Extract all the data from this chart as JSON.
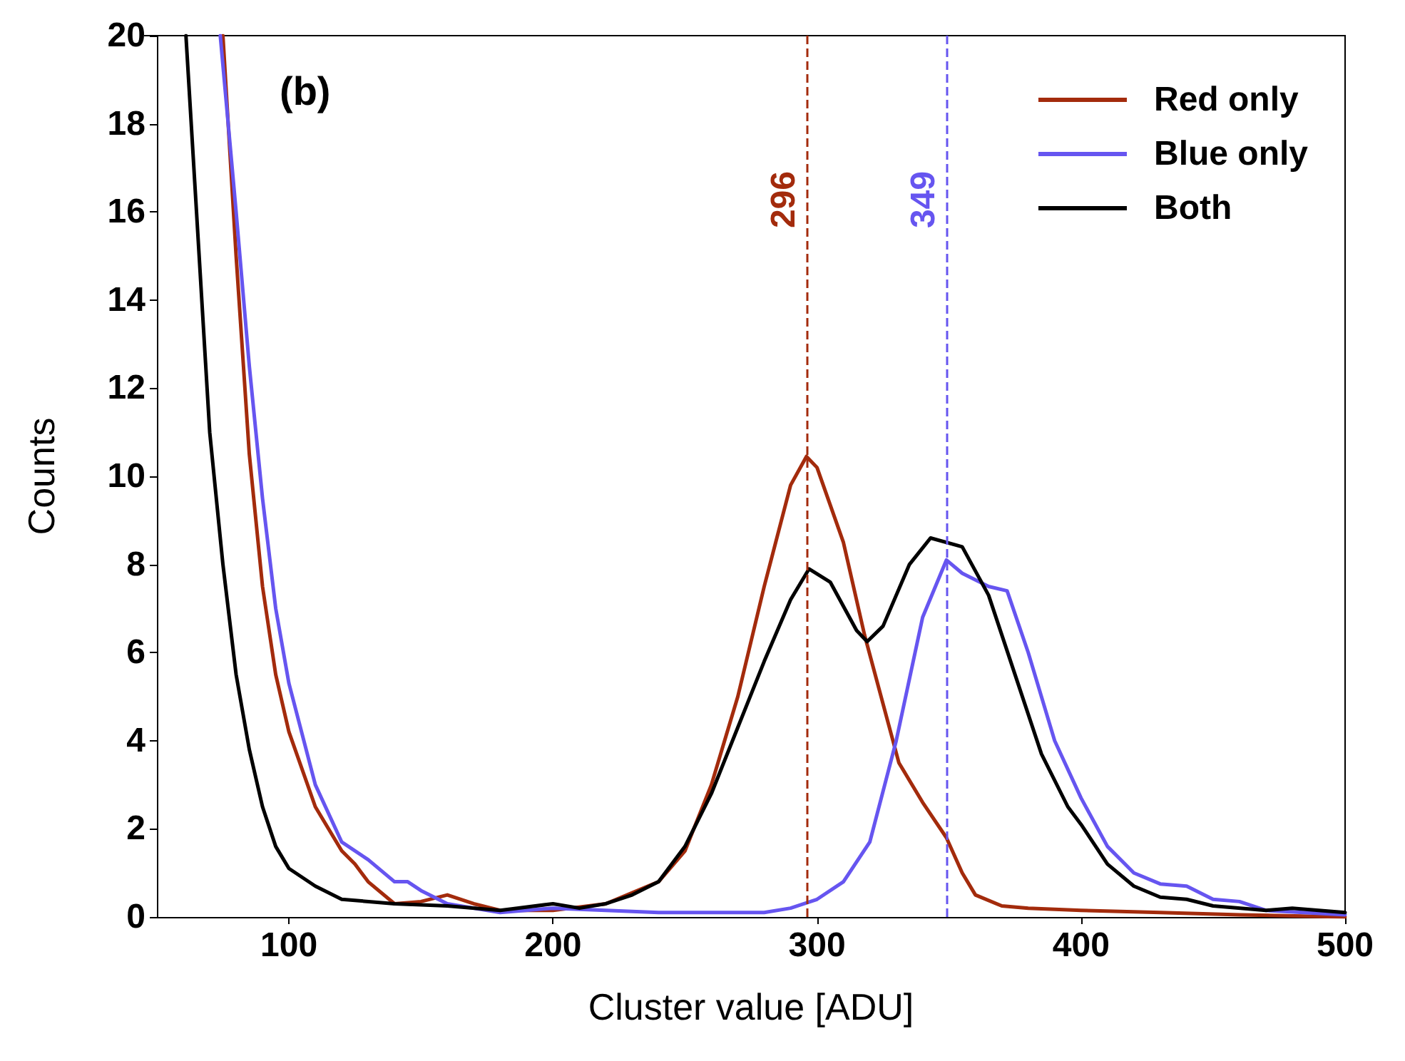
{
  "chart_data": {
    "type": "line",
    "xlabel": "Cluster value [ADU]",
    "ylabel": "Counts",
    "xlim": [
      50,
      500
    ],
    "xticks": [
      100,
      200,
      300,
      400,
      500
    ],
    "ylim": [
      0,
      20
    ],
    "yticks": [
      0,
      2,
      4,
      6,
      8,
      10,
      12,
      14,
      16,
      18,
      20
    ],
    "grid": false,
    "legend": "top right",
    "marker": "none",
    "line_style": "solid",
    "annotations": [
      "(b)"
    ],
    "ref_lines": [
      {
        "axis": "x",
        "value": 296,
        "label": "296",
        "color": "#a32b0c",
        "line_style": "dashed"
      },
      {
        "axis": "x",
        "value": 349,
        "label": "349",
        "color": "#6655f0",
        "line_style": "dashed"
      }
    ],
    "series": [
      {
        "name": "Red only",
        "color": "#a32b0c",
        "x": [
          75,
          80,
          85,
          90,
          95,
          100,
          110,
          120,
          125,
          130,
          140,
          150,
          160,
          170,
          180,
          200,
          220,
          240,
          250,
          260,
          270,
          280,
          290,
          296,
          300,
          310,
          318,
          331,
          340,
          349,
          355,
          360,
          370,
          380,
          400,
          430,
          460,
          500
        ],
        "values": [
          20,
          15,
          10.5,
          7.5,
          5.5,
          4.2,
          2.5,
          1.5,
          1.2,
          0.8,
          0.3,
          0.35,
          0.5,
          0.3,
          0.15,
          0.15,
          0.3,
          0.8,
          1.5,
          3,
          5,
          7.5,
          9.8,
          10.45,
          10.2,
          8.5,
          6.4,
          3.5,
          2.6,
          1.8,
          1,
          0.5,
          0.25,
          0.2,
          0.15,
          0.1,
          0.05,
          0
        ]
      },
      {
        "name": "Blue only",
        "color": "#6655f0",
        "x": [
          74,
          80,
          85,
          90,
          95,
          100,
          110,
          120,
          130,
          140,
          145,
          150,
          160,
          180,
          200,
          220,
          240,
          260,
          280,
          290,
          300,
          310,
          320,
          330,
          340,
          349,
          355,
          365,
          372,
          380,
          390,
          400,
          410,
          420,
          430,
          440,
          450,
          460,
          470,
          500
        ],
        "values": [
          20,
          16,
          12.5,
          9.5,
          7,
          5.3,
          3,
          1.7,
          1.3,
          0.8,
          0.8,
          0.6,
          0.3,
          0.1,
          0.2,
          0.15,
          0.1,
          0.1,
          0.1,
          0.2,
          0.4,
          0.8,
          1.7,
          4,
          6.8,
          8.1,
          7.8,
          7.5,
          7.4,
          6,
          4,
          2.7,
          1.6,
          1,
          0.75,
          0.7,
          0.4,
          0.35,
          0.15,
          0.05
        ]
      },
      {
        "name": "Both",
        "color": "#000000",
        "x": [
          61,
          65,
          70,
          75,
          80,
          85,
          90,
          95,
          100,
          110,
          120,
          140,
          160,
          180,
          200,
          210,
          220,
          230,
          240,
          250,
          260,
          270,
          280,
          290,
          297,
          305,
          315,
          319,
          325,
          335,
          343,
          355,
          365,
          375,
          385,
          395,
          400,
          410,
          420,
          430,
          440,
          450,
          470,
          480,
          500
        ],
        "values": [
          20,
          16,
          11,
          8,
          5.5,
          3.8,
          2.5,
          1.6,
          1.1,
          0.7,
          0.4,
          0.3,
          0.25,
          0.15,
          0.3,
          0.2,
          0.3,
          0.5,
          0.8,
          1.6,
          2.8,
          4.3,
          5.8,
          7.2,
          7.9,
          7.6,
          6.5,
          6.25,
          6.6,
          8,
          8.6,
          8.4,
          7.3,
          5.5,
          3.7,
          2.5,
          2.1,
          1.2,
          0.7,
          0.45,
          0.4,
          0.25,
          0.15,
          0.2,
          0.1
        ]
      }
    ]
  }
}
